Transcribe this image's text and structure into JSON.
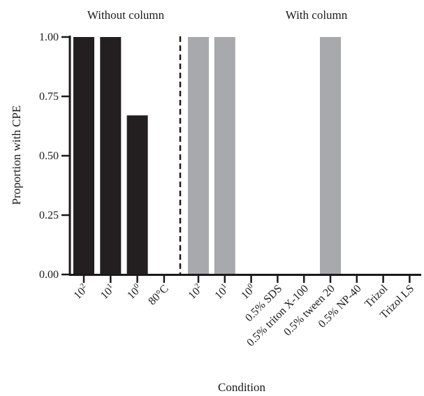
{
  "chart_data": {
    "type": "bar",
    "xlabel": "Condition",
    "ylabel": "Proportion with CPE",
    "ylim": [
      0,
      1
    ],
    "yticks": [
      "0.00",
      "0.25",
      "0.50",
      "0.75",
      "1.00"
    ],
    "grid": false,
    "groups": [
      {
        "label": "Without column",
        "color": "#231f20",
        "categories": [
          {
            "base": "10",
            "exp": "2",
            "text": ""
          },
          {
            "base": "10",
            "exp": "1",
            "text": ""
          },
          {
            "base": "10",
            "exp": "0",
            "text": ""
          },
          {
            "base": "",
            "exp": "",
            "text": "80°C"
          }
        ],
        "values": [
          1.0,
          1.0,
          0.67,
          0.0
        ]
      },
      {
        "label": "With column",
        "color": "#a7a9ac",
        "categories": [
          {
            "base": "10",
            "exp": "2",
            "text": ""
          },
          {
            "base": "10",
            "exp": "1",
            "text": ""
          },
          {
            "base": "10",
            "exp": "0",
            "text": ""
          },
          {
            "base": "",
            "exp": "",
            "text": "0.5% SDS"
          },
          {
            "base": "",
            "exp": "",
            "text": "0.5% triton X-100"
          },
          {
            "base": "",
            "exp": "",
            "text": "0.5% tween 20"
          },
          {
            "base": "",
            "exp": "",
            "text": "0.5% NP-40"
          },
          {
            "base": "",
            "exp": "",
            "text": "Trizol"
          },
          {
            "base": "",
            "exp": "",
            "text": "Trizol LS"
          }
        ],
        "values": [
          1.0,
          1.0,
          0.0,
          0.0,
          0.0,
          1.0,
          0.0,
          0.0,
          0.0
        ]
      }
    ]
  }
}
